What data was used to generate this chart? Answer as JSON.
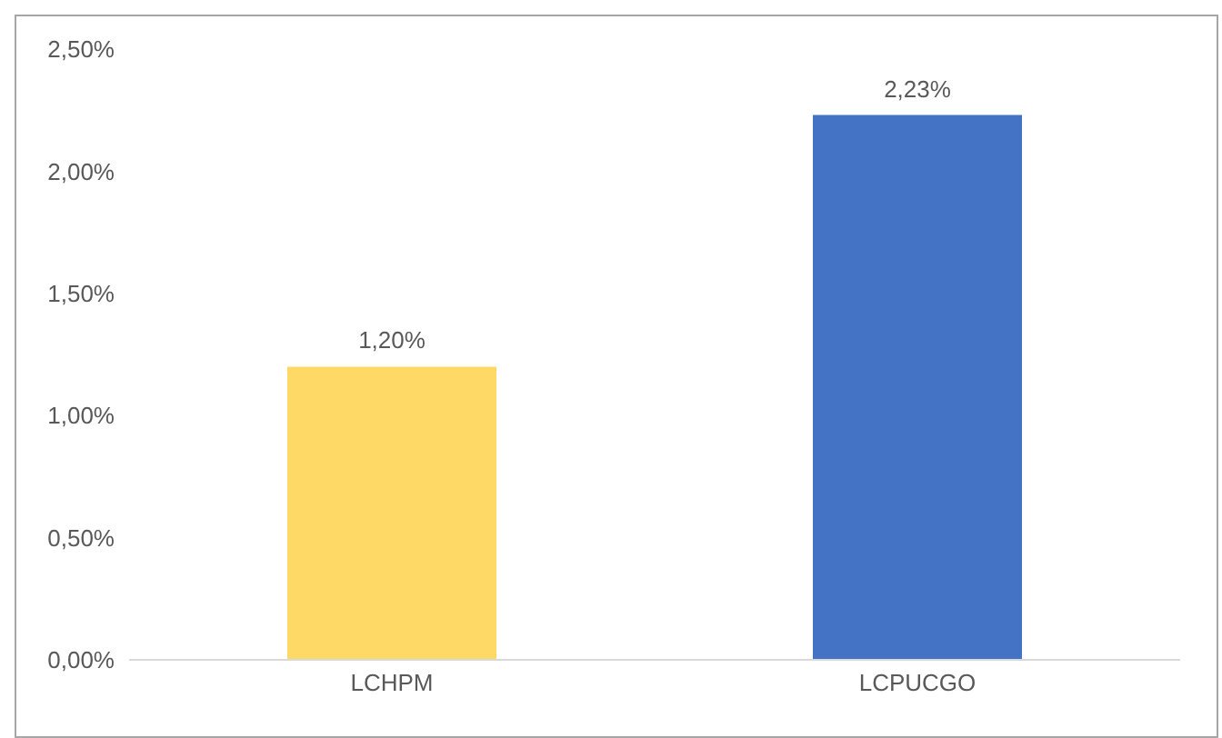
{
  "chart_data": {
    "type": "bar",
    "categories": [
      "LCHPM",
      "LCPUCGO"
    ],
    "values": [
      1.2,
      2.23
    ],
    "colors": [
      "#ffd966",
      "#4472c4"
    ],
    "value_labels": [
      "1,20%",
      "2,23%"
    ],
    "ylim": [
      0,
      2.5
    ],
    "yticks": [
      {
        "value": 0,
        "label": "0,00%"
      },
      {
        "value": 0.5,
        "label": "0,50%"
      },
      {
        "value": 1,
        "label": "1,00%"
      },
      {
        "value": 1.5,
        "label": "1,50%"
      },
      {
        "value": 2,
        "label": "2,00%"
      },
      {
        "value": 2.5,
        "label": "2,50%"
      }
    ],
    "grid": false
  }
}
